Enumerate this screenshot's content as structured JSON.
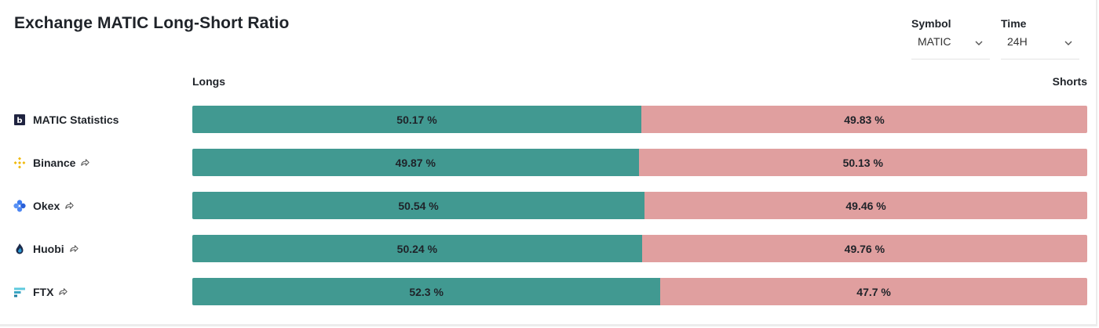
{
  "title": "Exchange MATIC Long-Short Ratio",
  "controls": {
    "symbol": {
      "label": "Symbol",
      "value": "MATIC"
    },
    "time": {
      "label": "Time",
      "value": "24H"
    }
  },
  "colors": {
    "long": "#419991",
    "short": "#e09f9f"
  },
  "chart_data": {
    "type": "bar",
    "orientation": "horizontal-stacked",
    "title": "Exchange MATIC Long-Short Ratio",
    "left_label": "Longs",
    "right_label": "Shorts",
    "categories": [
      "MATIC Statistics",
      "Binance",
      "Okex",
      "Huobi",
      "FTX"
    ],
    "series": [
      {
        "name": "Longs",
        "values": [
          50.17,
          49.87,
          50.54,
          50.24,
          52.3
        ]
      },
      {
        "name": "Shorts",
        "values": [
          49.83,
          50.13,
          49.46,
          49.76,
          47.7
        ]
      }
    ],
    "xlim": [
      0,
      100
    ],
    "value_suffix": " %",
    "rows": [
      {
        "name": "MATIC Statistics",
        "icon": "bitcoinwisdom-b-icon",
        "link": false,
        "long": 50.17,
        "short": 49.83,
        "long_label": "50.17 %",
        "short_label": "49.83 %"
      },
      {
        "name": "Binance",
        "icon": "binance-icon",
        "link": true,
        "long": 49.87,
        "short": 50.13,
        "long_label": "49.87 %",
        "short_label": "50.13 %"
      },
      {
        "name": "Okex",
        "icon": "okex-icon",
        "link": true,
        "long": 50.54,
        "short": 49.46,
        "long_label": "50.54 %",
        "short_label": "49.46 %"
      },
      {
        "name": "Huobi",
        "icon": "huobi-icon",
        "link": true,
        "long": 50.24,
        "short": 49.76,
        "long_label": "50.24 %",
        "short_label": "49.76 %"
      },
      {
        "name": "FTX",
        "icon": "ftx-icon",
        "link": true,
        "long": 52.3,
        "short": 47.7,
        "long_label": "52.3 %",
        "short_label": "47.7 %"
      }
    ]
  }
}
